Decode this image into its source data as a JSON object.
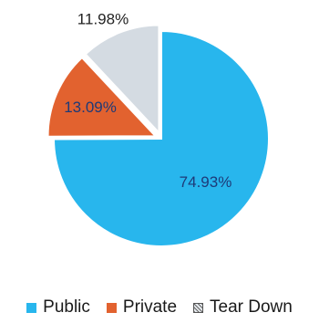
{
  "chart_data": {
    "type": "pie",
    "title": "",
    "slices": [
      {
        "name": "Public",
        "value": 74.93,
        "label": "74.93%",
        "color": "#28b6ed"
      },
      {
        "name": "Private",
        "value": 13.09,
        "label": "13.09%",
        "color": "#e2622f"
      },
      {
        "name": "Tear Down",
        "value": 11.98,
        "label": "11.98%",
        "color": "#d4dbe2"
      }
    ],
    "legend_placement": "bottom",
    "start_angle_deg": 0,
    "direction": "clockwise",
    "separator_color": "#ffffff"
  },
  "legend": {
    "items": [
      {
        "label": "Public",
        "color": "#28b6ed",
        "hatched": false
      },
      {
        "label": "Private",
        "color": "#e2622f",
        "hatched": false
      },
      {
        "label": "Tear Down",
        "color": "#e6eaee",
        "hatched": true
      }
    ]
  }
}
